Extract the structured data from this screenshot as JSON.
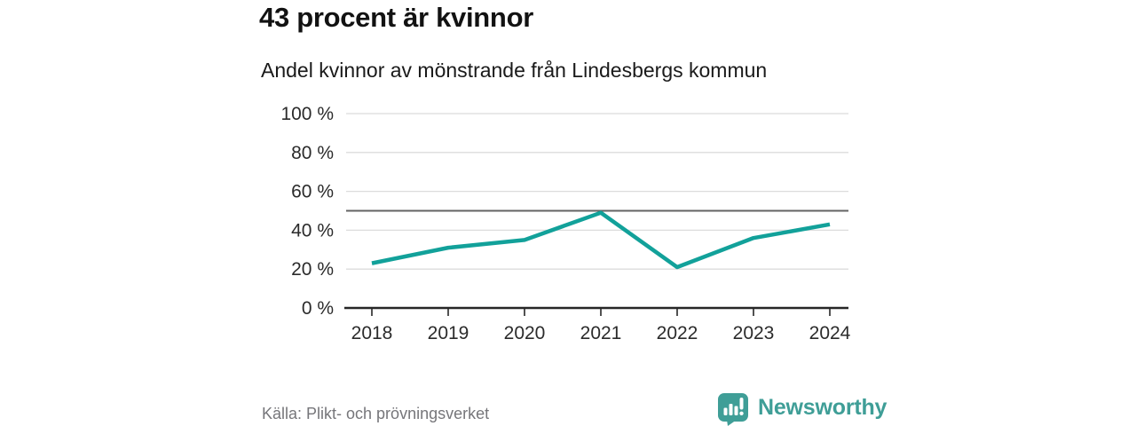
{
  "header": {
    "title": "43 procent är kvinnor",
    "subtitle": "Andel kvinnor av mönstrande från Lindesbergs kommun"
  },
  "chart_data": {
    "type": "line",
    "title": "43 procent är kvinnor",
    "subtitle": "Andel kvinnor av mönstrande från Lindesbergs kommun",
    "categories": [
      "2018",
      "2019",
      "2020",
      "2021",
      "2022",
      "2023",
      "2024"
    ],
    "series": [
      {
        "name": "Andel kvinnor av mönstrande",
        "values": [
          23,
          31,
          35,
          49,
          21,
          36,
          43
        ]
      }
    ],
    "xlabel": "",
    "ylabel": "",
    "ylim": [
      0,
      100
    ],
    "yticks": [
      0,
      20,
      40,
      60,
      80,
      100
    ],
    "ytick_labels": [
      "0 %",
      "20 %",
      "40 %",
      "60 %",
      "80 %",
      "100 %"
    ],
    "reference_line": 50,
    "grid": true,
    "legend": false,
    "colors": {
      "line": "#12a19a",
      "grid": "#dcdcdc",
      "reference_line": "#636363",
      "axis": "#262626",
      "tick_text": "#2b2b2b"
    }
  },
  "footer": {
    "source": "Källa: Plikt- och prövningsverket",
    "brand": "Newsworthy",
    "brand_color": "#3f9e97",
    "logo_bar_color": "#ffffff"
  }
}
